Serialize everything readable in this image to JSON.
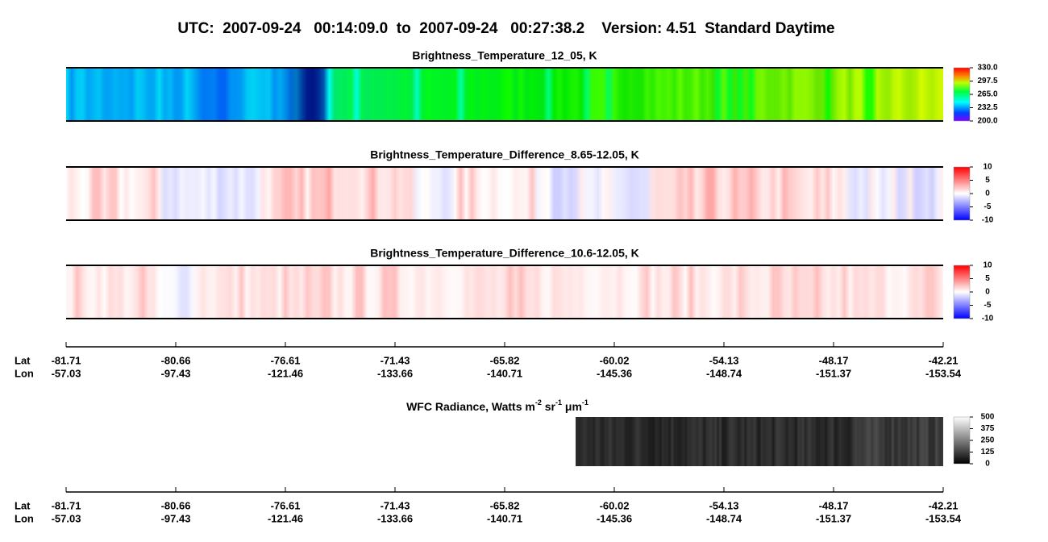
{
  "header": {
    "title": "UTC:  2007-09-24   00:14:09.0  to  2007-09-24   00:27:38.2    Version: 4.51  Standard Daytime"
  },
  "panels": [
    {
      "title": "Brightness_Temperature_12_05, K",
      "colorbar": {
        "ticks": [
          {
            "value": 330,
            "label": "330.0"
          },
          {
            "value": 297.5,
            "label": "297.5"
          },
          {
            "value": 265,
            "label": "265.0"
          },
          {
            "value": 232.5,
            "label": "232.5"
          },
          {
            "value": 200,
            "label": "200.0"
          }
        ]
      }
    },
    {
      "title": "Brightness_Temperature_Difference_8.65-12.05, K",
      "colorbar": {
        "ticks": [
          10,
          5,
          0,
          -5,
          -10
        ]
      }
    },
    {
      "title": "Brightness_Temperature_Difference_10.6-12.05, K",
      "colorbar": {
        "ticks": [
          10,
          5,
          0,
          -5,
          -10
        ]
      }
    }
  ],
  "wfc": {
    "title_parts": [
      "WFC Radiance, Watts m",
      "-2",
      " sr",
      "-1",
      " μm",
      "-1"
    ],
    "colorbar": {
      "ticks": [
        500,
        375,
        250,
        125,
        0
      ]
    }
  },
  "axes": [
    {
      "lat_label": "Lat",
      "lon_label": "Lon",
      "lat": [
        -81.71,
        -80.66,
        -76.61,
        -71.43,
        -65.82,
        -60.02,
        -54.13,
        -48.17,
        -42.21
      ],
      "lon": [
        -57.03,
        -97.43,
        -121.46,
        -133.66,
        -140.71,
        -145.36,
        -148.74,
        -151.37,
        -153.54
      ]
    },
    {
      "lat_label": "Lat",
      "lon_label": "Lon",
      "lat": [
        -81.71,
        -80.66,
        -76.61,
        -71.43,
        -65.82,
        -60.02,
        -54.13,
        -48.17,
        -42.21
      ],
      "lon": [
        -57.03,
        -97.43,
        -121.46,
        -133.66,
        -140.71,
        -145.36,
        -148.74,
        -151.37,
        -153.54
      ]
    }
  ]
}
